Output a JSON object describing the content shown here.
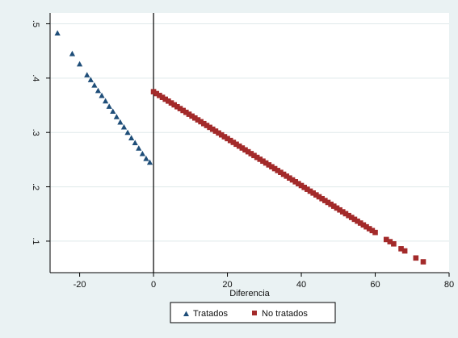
{
  "chart_data": {
    "type": "scatter",
    "xlabel": "Diferencia",
    "ylabel": "",
    "xlim": [
      -28,
      80
    ],
    "ylim": [
      0.042,
      0.52
    ],
    "x_ticks": [
      {
        "value": -20,
        "label": "-20"
      },
      {
        "value": 0,
        "label": "0"
      },
      {
        "value": 20,
        "label": "20"
      },
      {
        "value": 40,
        "label": "40"
      },
      {
        "value": 60,
        "label": "60"
      },
      {
        "value": 80,
        "label": "80"
      }
    ],
    "y_ticks": [
      {
        "value": 0.1,
        "label": ".1"
      },
      {
        "value": 0.2,
        "label": ".2"
      },
      {
        "value": 0.3,
        "label": ".3"
      },
      {
        "value": 0.4,
        "label": ".4"
      },
      {
        "value": 0.5,
        "label": ".5"
      }
    ],
    "grid": "horizontal",
    "vline_x": 0,
    "legend_position": "bottom",
    "series": [
      {
        "name": "Tratados",
        "marker": "triangle",
        "color": "#1f4e79",
        "points": [
          [
            -26,
            0.483
          ],
          [
            -22,
            0.445
          ],
          [
            -20,
            0.426
          ],
          [
            -18,
            0.406
          ],
          [
            -17,
            0.397
          ],
          [
            -16,
            0.387
          ],
          [
            -15,
            0.377
          ],
          [
            -14,
            0.368
          ],
          [
            -13,
            0.358
          ],
          [
            -12,
            0.348
          ],
          [
            -11,
            0.339
          ],
          [
            -10,
            0.329
          ],
          [
            -9,
            0.319
          ],
          [
            -8,
            0.31
          ],
          [
            -7,
            0.3
          ],
          [
            -6,
            0.29
          ],
          [
            -5,
            0.281
          ],
          [
            -4,
            0.271
          ],
          [
            -3,
            0.261
          ],
          [
            -2,
            0.252
          ],
          [
            -1,
            0.245
          ]
        ]
      },
      {
        "name": "No tratados",
        "marker": "square",
        "color": "#a32a2a",
        "x_start": 0,
        "x_end": 60,
        "y_start": 0.375,
        "y_end": 0.116,
        "extra_points": [
          [
            63,
            0.103
          ],
          [
            64,
            0.099
          ],
          [
            65,
            0.095
          ],
          [
            67,
            0.086
          ],
          [
            68,
            0.082
          ],
          [
            71,
            0.069
          ],
          [
            73,
            0.062
          ]
        ]
      }
    ]
  },
  "legend": {
    "items": [
      {
        "label": "Tratados"
      },
      {
        "label": "No tratados"
      }
    ]
  }
}
